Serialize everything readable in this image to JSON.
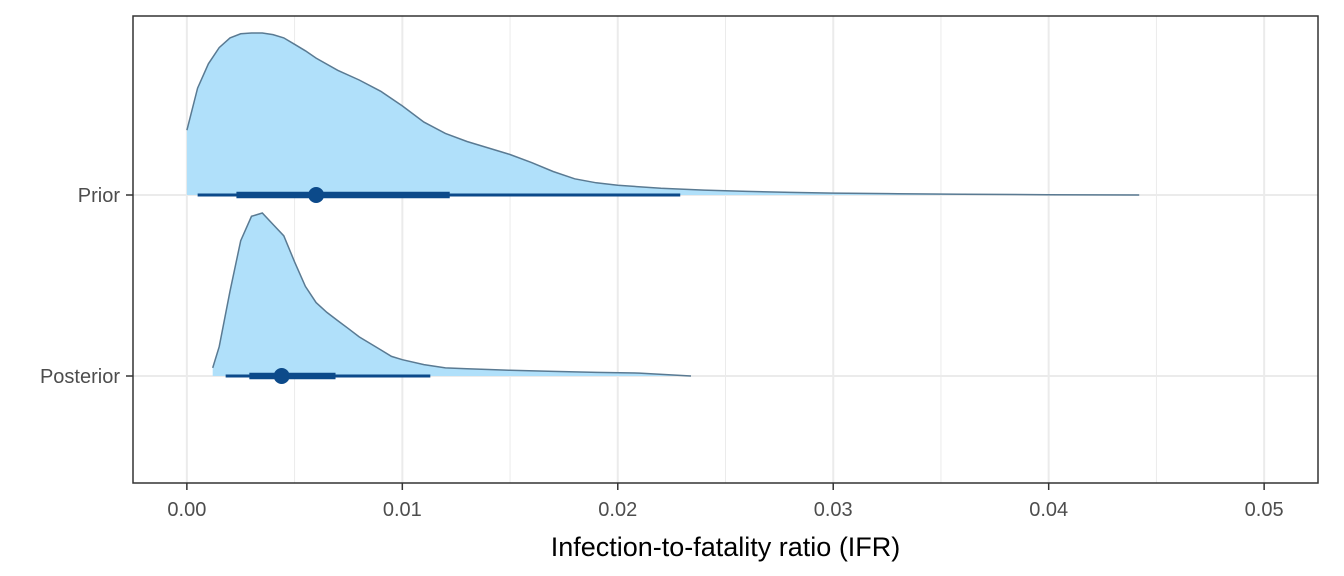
{
  "chart_data": {
    "type": "area",
    "subtype": "halfeye-density",
    "title": "",
    "xlabel": "Infection-to-fatality ratio (IFR)",
    "ylabel": "",
    "xlim": [
      -0.0025,
      0.0525
    ],
    "x_ticks": [
      0,
      0.01,
      0.02,
      0.03,
      0.04,
      0.05
    ],
    "x_tick_labels": [
      "0.00",
      "0.01",
      "0.02",
      "0.03",
      "0.04",
      "0.05"
    ],
    "categories": [
      "Prior",
      "Posterior"
    ],
    "grid": true,
    "legend": "none",
    "colors": {
      "fill": "#b0e0fa",
      "outline": "#5a7a92",
      "interval": "#0c4a8a",
      "grid": "#ebebeb",
      "panel_border": "#333333"
    },
    "series": [
      {
        "name": "Prior",
        "density_x": [
          0,
          0.0005,
          0.001,
          0.0015,
          0.002,
          0.0025,
          0.003,
          0.0035,
          0.004,
          0.0045,
          0.005,
          0.0055,
          0.006,
          0.007,
          0.008,
          0.009,
          0.01,
          0.011,
          0.012,
          0.013,
          0.014,
          0.015,
          0.016,
          0.017,
          0.018,
          0.019,
          0.02,
          0.022,
          0.024,
          0.026,
          0.028,
          0.03,
          0.033,
          0.036,
          0.04,
          0.0442
        ],
        "density_rel": [
          0.4,
          0.66,
          0.81,
          0.91,
          0.97,
          0.995,
          1.0,
          1.0,
          0.99,
          0.97,
          0.93,
          0.89,
          0.845,
          0.77,
          0.71,
          0.64,
          0.55,
          0.45,
          0.38,
          0.33,
          0.29,
          0.25,
          0.2,
          0.145,
          0.1,
          0.075,
          0.06,
          0.042,
          0.03,
          0.022,
          0.016,
          0.012,
          0.008,
          0.005,
          0.002,
          0.0
        ],
        "point": 0.006,
        "interval_inner": [
          0.0023,
          0.0122
        ],
        "interval_outer": [
          0.0005,
          0.0229
        ]
      },
      {
        "name": "Posterior",
        "density_x": [
          0.0012,
          0.0015,
          0.002,
          0.0025,
          0.003,
          0.0035,
          0.004,
          0.0045,
          0.005,
          0.0055,
          0.006,
          0.0065,
          0.007,
          0.0075,
          0.008,
          0.0085,
          0.009,
          0.0095,
          0.01,
          0.011,
          0.012,
          0.013,
          0.014,
          0.015,
          0.017,
          0.019,
          0.021,
          0.0234
        ],
        "density_rel": [
          0.05,
          0.18,
          0.52,
          0.83,
          0.98,
          1.0,
          0.93,
          0.86,
          0.7,
          0.55,
          0.45,
          0.39,
          0.34,
          0.29,
          0.24,
          0.2,
          0.16,
          0.12,
          0.1,
          0.07,
          0.05,
          0.045,
          0.04,
          0.035,
          0.028,
          0.022,
          0.018,
          0.0
        ],
        "point": 0.0044,
        "interval_inner": [
          0.0029,
          0.0069
        ],
        "interval_outer": [
          0.0018,
          0.0113
        ]
      }
    ]
  }
}
